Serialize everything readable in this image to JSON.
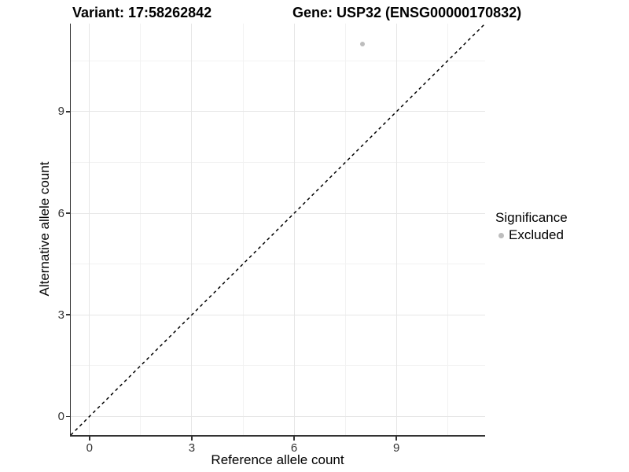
{
  "chart_data": {
    "type": "scatter",
    "titles": {
      "left": "Variant: 17:58262842",
      "right": "Gene: USP32 (ENSG00000170832)"
    },
    "xlabel": "Reference allele count",
    "ylabel": "Alternative allele count",
    "xlim": [
      -0.55,
      11.6
    ],
    "ylim": [
      -0.55,
      11.6
    ],
    "x_ticks": [
      0,
      3,
      6,
      9
    ],
    "y_ticks": [
      0,
      3,
      6,
      9
    ],
    "x_minor_ticks": [
      1.5,
      4.5,
      7.5,
      10.5
    ],
    "y_minor_ticks": [
      1.5,
      4.5,
      7.5,
      10.5
    ],
    "grid": "major and minor light-gray gridlines on white panel",
    "identity_line": {
      "slope": 1,
      "intercept": 0,
      "style": "dashed",
      "color": "#000000"
    },
    "points": [
      {
        "x": 8,
        "y": 11,
        "series": "Excluded"
      }
    ],
    "legend": {
      "position": "right",
      "title": "Significance",
      "entries": [
        {
          "label": "Excluded",
          "color": "#bdbdbd",
          "marker": "circle"
        }
      ]
    },
    "colors": {
      "point": "#bdbdbd",
      "grid_major": "#e6e6e6",
      "grid_minor": "#f2f2f2",
      "axis_line": "#333333",
      "tick_label": "#333333",
      "title": "#000000"
    }
  }
}
